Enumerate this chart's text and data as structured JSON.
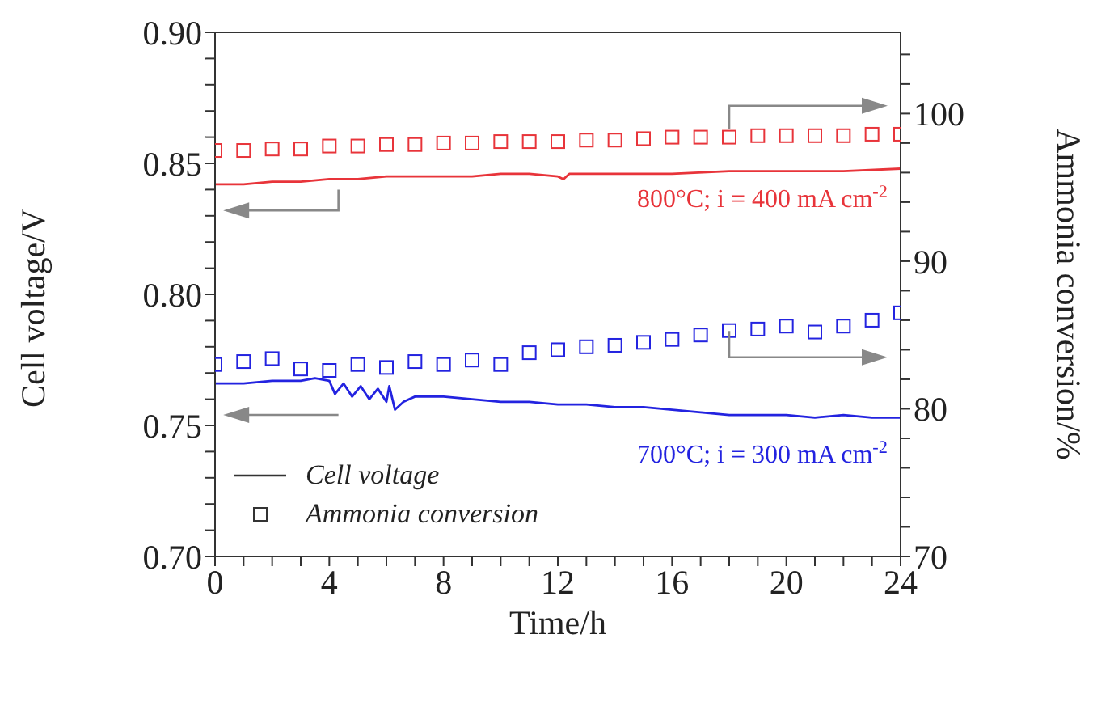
{
  "chart_data": {
    "type": "line",
    "xlabel": "Time/h",
    "ylabel": "Cell voltage/V",
    "y2label": "Ammonia conversion/%",
    "xlim": [
      0,
      24
    ],
    "xticks": [
      0,
      {
        "value": 1,
        "label": null
      },
      {
        "value": 2,
        "label": null
      },
      {
        "value": 3,
        "label": null
      },
      4,
      {
        "value": 5,
        "label": null
      },
      {
        "value": 6,
        "label": null
      },
      {
        "value": 7,
        "label": null
      },
      8,
      {
        "value": 9,
        "label": null
      },
      {
        "value": 10,
        "label": null
      },
      {
        "value": 11,
        "label": null
      },
      12,
      {
        "value": 13,
        "label": null
      },
      {
        "value": 14,
        "label": null
      },
      {
        "value": 15,
        "label": null
      },
      16,
      {
        "value": 17,
        "label": null
      },
      {
        "value": 18,
        "label": null
      },
      {
        "value": 19,
        "label": null
      },
      20,
      {
        "value": 21,
        "label": null
      },
      {
        "value": 22,
        "label": null
      },
      {
        "value": 23,
        "label": null
      },
      24
    ],
    "ylim": [
      0.7,
      0.9
    ],
    "yticks": [
      {
        "value": 0.7,
        "label": "0.70"
      },
      {
        "value": 0.71,
        "label": null
      },
      {
        "value": 0.72,
        "label": null
      },
      {
        "value": 0.73,
        "label": null
      },
      {
        "value": 0.74,
        "label": null
      },
      {
        "value": 0.75,
        "label": "0.75"
      },
      {
        "value": 0.76,
        "label": null
      },
      {
        "value": 0.77,
        "label": null
      },
      {
        "value": 0.78,
        "label": null
      },
      {
        "value": 0.79,
        "label": null
      },
      {
        "value": 0.8,
        "label": "0.80"
      },
      {
        "value": 0.81,
        "label": null
      },
      {
        "value": 0.82,
        "label": null
      },
      {
        "value": 0.83,
        "label": null
      },
      {
        "value": 0.84,
        "label": null
      },
      {
        "value": 0.85,
        "label": "0.85"
      },
      {
        "value": 0.86,
        "label": null
      },
      {
        "value": 0.87,
        "label": null
      },
      {
        "value": 0.88,
        "label": null
      },
      {
        "value": 0.89,
        "label": null
      },
      {
        "value": 0.9,
        "label": "0.90"
      }
    ],
    "y2lim": [
      70,
      105.5
    ],
    "y2ticks": [
      70,
      {
        "value": 72,
        "label": null
      },
      {
        "value": 74,
        "label": null
      },
      {
        "value": 76,
        "label": null
      },
      {
        "value": 78,
        "label": null
      },
      80,
      {
        "value": 82,
        "label": null
      },
      {
        "value": 84,
        "label": null
      },
      {
        "value": 86,
        "label": null
      },
      {
        "value": 88,
        "label": null
      },
      90,
      {
        "value": 92,
        "label": null
      },
      {
        "value": 94,
        "label": null
      },
      {
        "value": 96,
        "label": null
      },
      {
        "value": 98,
        "label": null
      },
      100,
      {
        "value": 102,
        "label": null
      },
      {
        "value": 104,
        "label": null
      }
    ],
    "grid": false,
    "annotations": [
      "800°C; i = 400 mA cm$^{-2}$",
      "700°C; i = 300 mA cm$^{-2}$",
      "Cell voltage",
      "Ammonia conversion"
    ],
    "series": [
      {
        "color": "#e8343a",
        "marker": "none",
        "x": [
          0,
          1,
          2,
          3,
          4,
          5,
          6,
          7,
          8,
          9,
          10,
          11,
          12,
          12.2,
          12.4,
          14,
          16,
          18,
          20,
          22,
          24
        ],
        "values": [
          0.842,
          0.842,
          0.843,
          0.843,
          0.844,
          0.844,
          0.845,
          0.845,
          0.845,
          0.845,
          0.846,
          0.846,
          0.845,
          0.844,
          0.846,
          0.846,
          0.846,
          0.847,
          0.847,
          0.847,
          0.848
        ]
      },
      {
        "type": "scatter",
        "axis": "y2",
        "color": "#e8343a",
        "marker": "square",
        "x": [
          0,
          1,
          2,
          3,
          4,
          5,
          6,
          7,
          8,
          9,
          10,
          11,
          12,
          13,
          14,
          15,
          16,
          17,
          18,
          19,
          20,
          21,
          22,
          23,
          24
        ],
        "values": [
          97.5,
          97.5,
          97.6,
          97.6,
          97.8,
          97.8,
          97.9,
          97.9,
          98.0,
          98.0,
          98.1,
          98.1,
          98.1,
          98.2,
          98.2,
          98.3,
          98.4,
          98.4,
          98.4,
          98.5,
          98.5,
          98.5,
          98.5,
          98.6,
          98.6
        ]
      },
      {
        "color": "#2323e0",
        "marker": "none",
        "x": [
          0,
          1,
          2,
          3,
          3.5,
          4,
          4.2,
          4.5,
          4.8,
          5.1,
          5.4,
          5.7,
          6,
          6.1,
          6.3,
          6.6,
          7,
          8,
          9,
          10,
          11,
          12,
          13,
          14,
          15,
          16,
          17,
          18,
          19,
          20,
          21,
          22,
          23,
          24
        ],
        "values": [
          0.766,
          0.766,
          0.767,
          0.767,
          0.768,
          0.767,
          0.762,
          0.766,
          0.761,
          0.765,
          0.76,
          0.764,
          0.759,
          0.765,
          0.756,
          0.759,
          0.761,
          0.761,
          0.76,
          0.759,
          0.759,
          0.758,
          0.758,
          0.757,
          0.757,
          0.756,
          0.755,
          0.754,
          0.754,
          0.754,
          0.753,
          0.754,
          0.753,
          0.753
        ]
      },
      {
        "type": "scatter",
        "axis": "y2",
        "color": "#2323e0",
        "marker": "square",
        "x": [
          0,
          1,
          2,
          3,
          4,
          5,
          6,
          7,
          8,
          9,
          10,
          11,
          12,
          13,
          14,
          15,
          16,
          17,
          18,
          19,
          20,
          21,
          22,
          23,
          24
        ],
        "values": [
          83.0,
          83.2,
          83.4,
          82.7,
          82.6,
          83.0,
          82.8,
          83.2,
          83.0,
          83.3,
          83.0,
          83.8,
          84.0,
          84.2,
          84.3,
          84.5,
          84.7,
          85.0,
          85.3,
          85.4,
          85.6,
          85.2,
          85.6,
          86.0,
          86.5
        ]
      }
    ]
  }
}
